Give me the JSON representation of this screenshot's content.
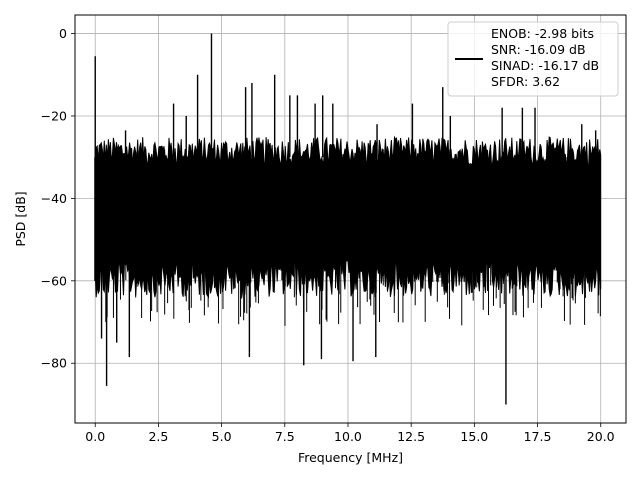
{
  "chart_data": {
    "type": "line",
    "xlabel": "Frequency [MHz]",
    "ylabel": "PSD [dB]",
    "xlim": [
      -0.8,
      21.0
    ],
    "ylim": [
      -94.5,
      4.5
    ],
    "x_ticks": [
      0.0,
      2.5,
      5.0,
      7.5,
      10.0,
      12.5,
      15.0,
      17.5,
      20.0
    ],
    "x_tick_labels": [
      "0.0",
      "2.5",
      "5.0",
      "7.5",
      "10.0",
      "12.5",
      "15.0",
      "17.5",
      "20.0"
    ],
    "y_ticks": [
      0,
      -20,
      -40,
      -60,
      -80
    ],
    "y_tick_labels": [
      "0",
      "−20",
      "−40",
      "−60",
      "−80"
    ],
    "grid": true,
    "legend_position": "top-right",
    "series": [
      {
        "color": "#000000",
        "x_range": [
          0.0,
          20.0
        ],
        "noise_floor_upper_db": -30,
        "noise_floor_lower_db": -55,
        "peak_db": 0.0,
        "peak_x": 4.6,
        "min_db": -90,
        "min_x": 16.25,
        "notable_spurs": [
          {
            "x": 0.0,
            "y": -5.5
          },
          {
            "x": 4.6,
            "y": 0.0
          },
          {
            "x": 4.05,
            "y": -10
          },
          {
            "x": 7.1,
            "y": -10
          },
          {
            "x": 5.95,
            "y": -13
          },
          {
            "x": 6.2,
            "y": -12
          },
          {
            "x": 13.75,
            "y": -13
          },
          {
            "x": 1.2,
            "y": -23.5
          },
          {
            "x": 3.1,
            "y": -17
          },
          {
            "x": 3.6,
            "y": -20
          },
          {
            "x": 7.7,
            "y": -15
          },
          {
            "x": 8.0,
            "y": -15
          },
          {
            "x": 8.7,
            "y": -17
          },
          {
            "x": 9.0,
            "y": -15
          },
          {
            "x": 9.4,
            "y": -17
          },
          {
            "x": 11.15,
            "y": -22
          },
          {
            "x": 12.55,
            "y": -17
          },
          {
            "x": 14.05,
            "y": -20
          },
          {
            "x": 16.1,
            "y": -18
          },
          {
            "x": 16.9,
            "y": -18
          },
          {
            "x": 17.4,
            "y": -18
          },
          {
            "x": 19.25,
            "y": -22
          },
          {
            "x": 19.8,
            "y": -23.5
          },
          {
            "x": 0.25,
            "y": -74
          },
          {
            "x": 0.45,
            "y": -85.5
          },
          {
            "x": 0.85,
            "y": -75
          },
          {
            "x": 1.35,
            "y": -78.5
          },
          {
            "x": 6.1,
            "y": -78.5
          },
          {
            "x": 8.25,
            "y": -80.5
          },
          {
            "x": 8.95,
            "y": -79
          },
          {
            "x": 10.2,
            "y": -79.5
          },
          {
            "x": 11.1,
            "y": -78.5
          },
          {
            "x": 16.25,
            "y": -90
          }
        ]
      }
    ],
    "legend": {
      "entries": [
        "ENOB: -2.98 bits",
        "SNR: -16.09 dB",
        "SINAD: -16.17 dB",
        "SFDR: 3.62"
      ]
    }
  }
}
